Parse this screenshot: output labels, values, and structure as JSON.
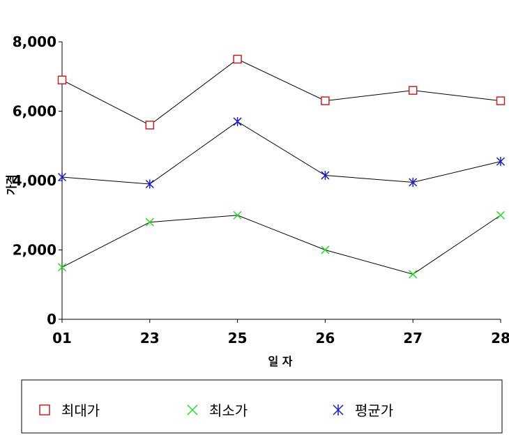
{
  "chart_data": {
    "type": "line",
    "title": "",
    "xlabel": "일 자",
    "ylabel": "가격",
    "categories": [
      "01",
      "23",
      "25",
      "26",
      "27",
      "28"
    ],
    "ylim": [
      0,
      8000
    ],
    "yticks": [
      0,
      2000,
      4000,
      6000,
      8000
    ],
    "ytick_labels": [
      "0",
      "2,000",
      "4,000",
      "6,000",
      "8,000"
    ],
    "grid": false,
    "legend_position": "bottom",
    "series": [
      {
        "name": "최대가",
        "values": [
          6900,
          5600,
          7500,
          6300,
          6600,
          6300
        ],
        "marker": "square",
        "color": "#cc2020",
        "line_color": "#000000"
      },
      {
        "name": "최소가",
        "values": [
          1500,
          2800,
          3000,
          2000,
          1300,
          3000
        ],
        "marker": "x",
        "color": "#20dd20",
        "line_color": "#000000"
      },
      {
        "name": "평균가",
        "values": [
          4100,
          3900,
          5700,
          4150,
          3950,
          4550
        ],
        "marker": "asterisk",
        "color": "#1a1acc",
        "line_color": "#000000"
      }
    ]
  }
}
